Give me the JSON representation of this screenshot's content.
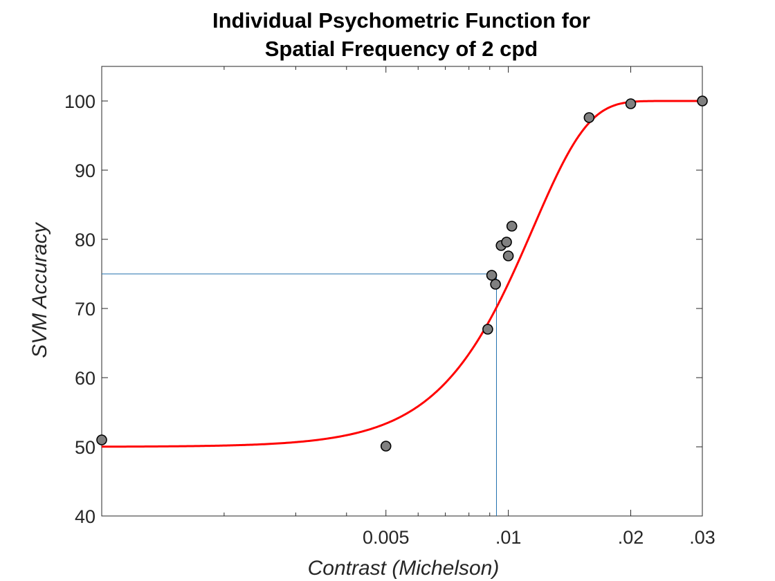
{
  "chart_data": {
    "type": "scatter",
    "title": [
      "Individual Psychometric Function for",
      "Spatial Frequency of 2 cpd"
    ],
    "xlabel": "Contrast (Michelson)",
    "ylabel": "SVM Accuracy",
    "x_scale": "log",
    "xlim": [
      0.001,
      0.03
    ],
    "ylim": [
      40,
      105
    ],
    "x_ticks": [
      {
        "value": 0.005,
        "label": "0.005"
      },
      {
        "value": 0.01,
        "label": ".01"
      },
      {
        "value": 0.02,
        "label": ".02"
      },
      {
        "value": 0.03,
        "label": ".03"
      }
    ],
    "x_minor_ticks": [
      0.002,
      0.003,
      0.004,
      0.006,
      0.007,
      0.008,
      0.009
    ],
    "y_ticks": [
      {
        "value": 40,
        "label": "40"
      },
      {
        "value": 50,
        "label": "50"
      },
      {
        "value": 60,
        "label": "60"
      },
      {
        "value": 70,
        "label": "70"
      },
      {
        "value": 80,
        "label": "80"
      },
      {
        "value": 90,
        "label": "90"
      },
      {
        "value": 100,
        "label": "100"
      }
    ],
    "grid": false,
    "series": [
      {
        "kind": "points",
        "color": "#808080",
        "edge_color": "#000000",
        "points": [
          {
            "x": 0.001,
            "y": 51.0
          },
          {
            "x": 0.005,
            "y": 50.1
          },
          {
            "x": 0.0089,
            "y": 67.0
          },
          {
            "x": 0.0091,
            "y": 74.8
          },
          {
            "x": 0.0093,
            "y": 73.5
          },
          {
            "x": 0.0096,
            "y": 79.1
          },
          {
            "x": 0.0099,
            "y": 79.6
          },
          {
            "x": 0.01,
            "y": 77.6
          },
          {
            "x": 0.0102,
            "y": 81.9
          },
          {
            "x": 0.0158,
            "y": 97.6
          },
          {
            "x": 0.02,
            "y": 99.6
          },
          {
            "x": 0.03,
            "y": 100.0
          }
        ]
      },
      {
        "kind": "fit",
        "color": "#ff0000",
        "function": "weibull",
        "guess_rate": 50,
        "lapse_rate": 0,
        "threshold_alpha": 0.0115,
        "slope_beta": 3.2
      }
    ],
    "threshold": {
      "color": "#1f6fae",
      "x": 0.00935,
      "y": 75
    }
  }
}
